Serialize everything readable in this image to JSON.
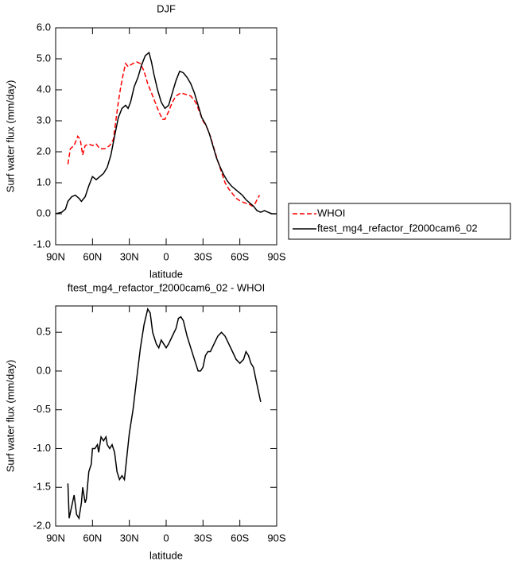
{
  "chart_data": [
    {
      "type": "line",
      "title": "DJF",
      "xlabel": "latitude",
      "ylabel": "Surf water flux (mm/day)",
      "xlim": [
        90,
        -90
      ],
      "ylim": [
        -1,
        6
      ],
      "xticks": [
        {
          "value": 90,
          "label": "90N"
        },
        {
          "value": 60,
          "label": "60N"
        },
        {
          "value": 30,
          "label": "30N"
        },
        0,
        {
          "value": -30,
          "label": "30S"
        },
        {
          "value": -60,
          "label": "60S"
        },
        {
          "value": -90,
          "label": "90S"
        }
      ],
      "yticks": [
        {
          "value": -1,
          "label": "-1.0"
        },
        {
          "value": 0,
          "label": "0.0"
        },
        {
          "value": 1,
          "label": "1.0"
        },
        {
          "value": 2,
          "label": "2.0"
        },
        {
          "value": 3,
          "label": "3.0"
        },
        {
          "value": 4,
          "label": "4.0"
        },
        {
          "value": 5,
          "label": "5.0"
        },
        {
          "value": 6,
          "label": "6.0"
        }
      ],
      "legend": "right",
      "series": [
        {
          "name": "WHOI",
          "color": "#ff0000",
          "dash": true,
          "x": [
            80,
            78,
            75,
            72,
            70,
            68,
            66,
            63,
            60,
            57,
            54,
            50,
            46,
            43,
            41,
            39,
            37,
            35,
            33,
            31,
            29,
            27,
            24,
            21,
            18,
            15,
            12,
            9,
            6,
            3,
            1,
            -2,
            -5,
            -8,
            -12,
            -16,
            -20,
            -24,
            -27,
            -30,
            -33,
            -36,
            -39,
            -42,
            -45,
            -48,
            -51,
            -54,
            -57,
            -60,
            -64,
            -68,
            -70,
            -72,
            -74,
            -76
          ],
          "values": [
            1.6,
            2.1,
            2.2,
            2.5,
            2.4,
            1.9,
            2.2,
            2.25,
            2.2,
            2.25,
            2.1,
            2.1,
            2.2,
            2.4,
            3.0,
            3.6,
            4.1,
            4.5,
            4.85,
            4.75,
            4.8,
            4.85,
            4.9,
            4.85,
            4.6,
            4.2,
            3.9,
            3.6,
            3.3,
            3.05,
            3.05,
            3.3,
            3.6,
            3.8,
            3.9,
            3.85,
            3.8,
            3.6,
            3.3,
            3.0,
            2.8,
            2.5,
            2.1,
            1.7,
            1.35,
            1.0,
            0.8,
            0.65,
            0.5,
            0.42,
            0.35,
            0.3,
            0.25,
            0.3,
            0.45,
            0.6
          ]
        },
        {
          "name": "ftest_mg4_refactor_f2000cam6_02",
          "color": "#000000",
          "dash": false,
          "x": [
            90,
            85,
            82,
            80,
            77,
            74,
            71,
            69,
            66,
            63,
            60,
            57,
            54,
            51,
            48,
            45,
            42,
            39,
            36,
            33,
            31,
            29,
            26,
            23,
            20,
            17,
            14,
            12,
            10,
            7,
            4,
            1,
            -2,
            -5,
            -8,
            -11,
            -14,
            -17,
            -20,
            -23,
            -26,
            -29,
            -32,
            -35,
            -38,
            -41,
            -44,
            -47,
            -50,
            -53,
            -56,
            -59,
            -62,
            -65,
            -68,
            -71,
            -74,
            -77,
            -80,
            -83,
            -86,
            -90
          ],
          "values": [
            0.0,
            0.05,
            0.15,
            0.4,
            0.55,
            0.6,
            0.5,
            0.4,
            0.55,
            0.9,
            1.2,
            1.1,
            1.2,
            1.3,
            1.5,
            1.9,
            2.5,
            3.1,
            3.4,
            3.5,
            3.4,
            3.6,
            4.1,
            4.4,
            4.8,
            5.1,
            5.2,
            4.9,
            4.5,
            4.0,
            3.6,
            3.4,
            3.5,
            3.9,
            4.3,
            4.6,
            4.55,
            4.4,
            4.2,
            3.9,
            3.5,
            3.1,
            2.9,
            2.6,
            2.2,
            1.8,
            1.5,
            1.25,
            1.05,
            0.9,
            0.8,
            0.7,
            0.6,
            0.45,
            0.35,
            0.25,
            0.1,
            0.05,
            0.1,
            0.05,
            0.0,
            0.0
          ]
        }
      ]
    },
    {
      "type": "line",
      "title": "ftest_mg4_refactor_f2000cam6_02 - WHOI",
      "xlabel": "latitude",
      "ylabel": "Surf water flux (mm/day)",
      "xlim": [
        90,
        -90
      ],
      "ylim": [
        -2,
        0.84
      ],
      "xticks": [
        {
          "value": 90,
          "label": "90N"
        },
        {
          "value": 60,
          "label": "60N"
        },
        {
          "value": 30,
          "label": "30N"
        },
        0,
        {
          "value": -30,
          "label": "30S"
        },
        {
          "value": -60,
          "label": "60S"
        },
        {
          "value": -90,
          "label": "90S"
        }
      ],
      "yticks": [
        {
          "value": -2,
          "label": "-2.0"
        },
        -1.5,
        {
          "value": -1,
          "label": "-1.0"
        },
        -0.5,
        {
          "value": 0,
          "label": "0.0"
        },
        0.5
      ],
      "series": [
        {
          "color": "#000000",
          "dash": false,
          "x": [
            80,
            79,
            77,
            75,
            73,
            71,
            69,
            68,
            66,
            65,
            63,
            61,
            60,
            58,
            56,
            55,
            53,
            51,
            49,
            48,
            46,
            44,
            42,
            40,
            38,
            36,
            34,
            32,
            30,
            27,
            24,
            21,
            18,
            15,
            13,
            11,
            8,
            6,
            4,
            2,
            0,
            -2,
            -5,
            -8,
            -10,
            -12,
            -14,
            -17,
            -20,
            -23,
            -26,
            -28,
            -30,
            -32,
            -34,
            -36,
            -39,
            -42,
            -45,
            -48,
            -51,
            -54,
            -57,
            -60,
            -63,
            -65,
            -67,
            -69,
            -71,
            -73,
            -75,
            -77
          ],
          "values": [
            -1.45,
            -1.9,
            -1.75,
            -1.6,
            -1.85,
            -1.9,
            -1.7,
            -1.5,
            -1.7,
            -1.65,
            -1.3,
            -1.2,
            -1.0,
            -1.0,
            -0.95,
            -1.05,
            -0.85,
            -0.9,
            -0.85,
            -0.95,
            -1.0,
            -0.95,
            -1.05,
            -1.3,
            -1.4,
            -1.35,
            -1.4,
            -1.1,
            -0.8,
            -0.5,
            -0.1,
            0.3,
            0.6,
            0.8,
            0.75,
            0.5,
            0.35,
            0.3,
            0.4,
            0.35,
            0.3,
            0.35,
            0.45,
            0.55,
            0.68,
            0.7,
            0.65,
            0.45,
            0.3,
            0.15,
            0.0,
            0.0,
            0.05,
            0.2,
            0.25,
            0.25,
            0.35,
            0.45,
            0.5,
            0.45,
            0.35,
            0.25,
            0.15,
            0.1,
            0.15,
            0.25,
            0.2,
            0.1,
            0.05,
            -0.1,
            -0.25,
            -0.4
          ]
        }
      ]
    }
  ]
}
